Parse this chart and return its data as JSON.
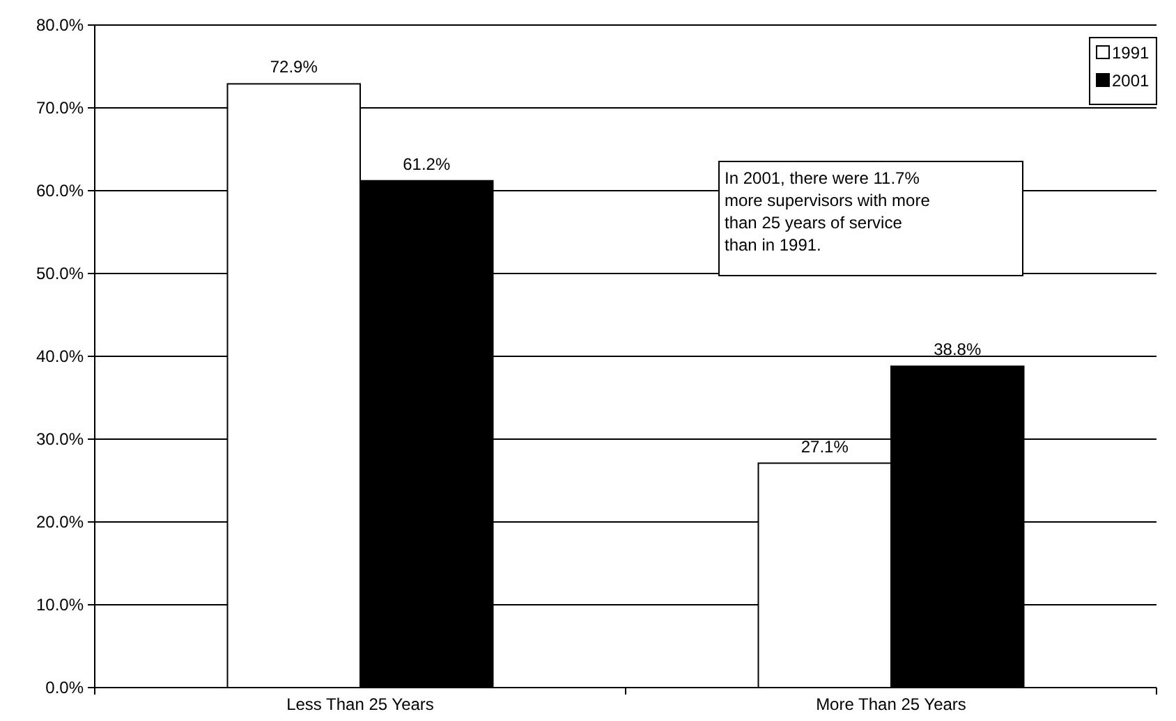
{
  "chart_data": {
    "type": "bar",
    "categories": [
      "Less Than 25 Years",
      "More Than 25 Years"
    ],
    "series": [
      {
        "name": "1991",
        "color": "#ffffff",
        "values": [
          72.9,
          27.1
        ],
        "value_labels": [
          "72.9%",
          "27.1%"
        ]
      },
      {
        "name": "2001",
        "color": "#000000",
        "values": [
          61.2,
          38.8
        ],
        "value_labels": [
          "61.2%",
          "38.8%"
        ]
      }
    ],
    "ylim": [
      0,
      80
    ],
    "yticks": [
      {
        "value": 0,
        "label": "0.0%"
      },
      {
        "value": 10,
        "label": "10.0%"
      },
      {
        "value": 20,
        "label": "20.0%"
      },
      {
        "value": 30,
        "label": "30.0%"
      },
      {
        "value": 40,
        "label": "40.0%"
      },
      {
        "value": 50,
        "label": "50.0%"
      },
      {
        "value": 60,
        "label": "60.0%"
      },
      {
        "value": 70,
        "label": "70.0%"
      },
      {
        "value": 80,
        "label": "80.0%"
      }
    ],
    "grid": "y",
    "legend": "top right",
    "annotations": [
      "In 2001, there were 11.7% more supervisors with more than 25 years of service than in 1991."
    ]
  }
}
